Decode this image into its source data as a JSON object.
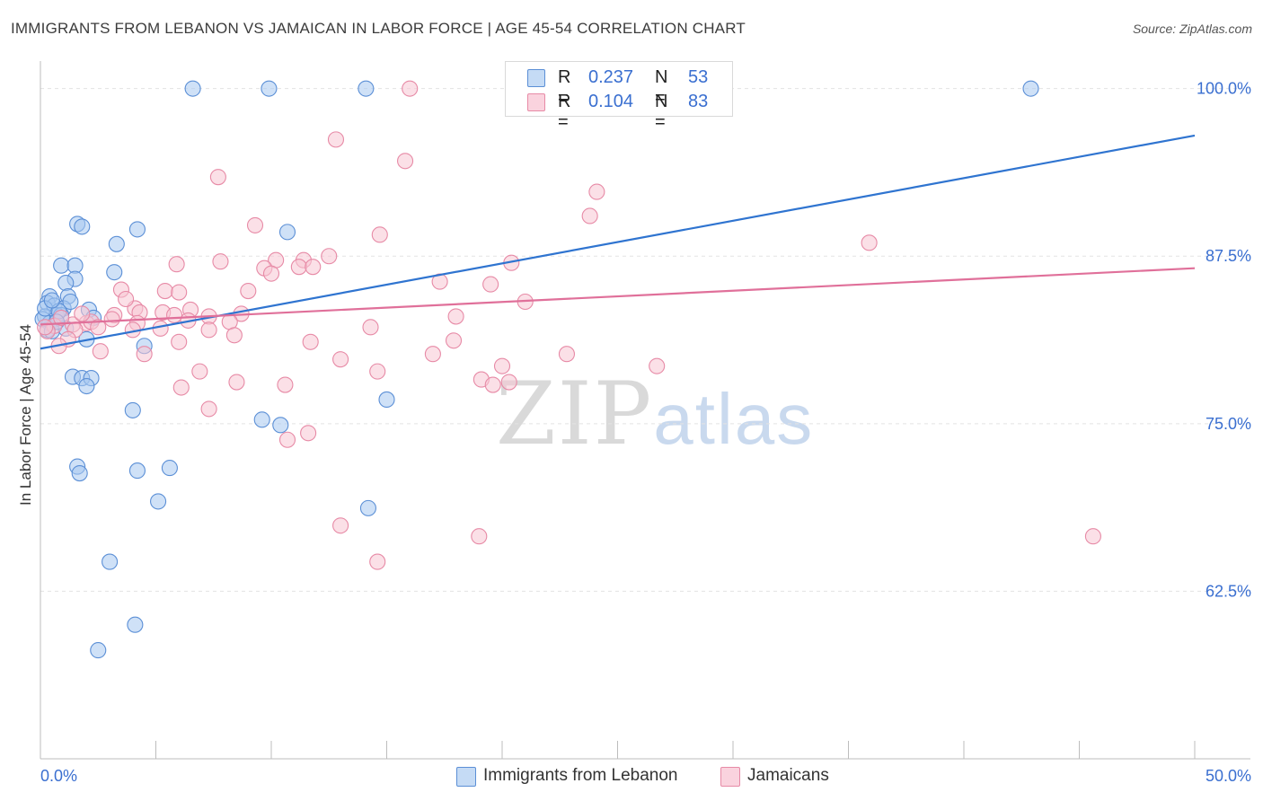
{
  "title": "IMMIGRANTS FROM LEBANON VS JAMAICAN IN LABOR FORCE | AGE 45-54 CORRELATION CHART",
  "source": "Source: ZipAtlas.com",
  "watermark": {
    "zip": "ZIP",
    "atlas": "atlas"
  },
  "legend": {
    "rows": [
      {
        "r_label": "R =",
        "r_value": "0.237",
        "n_label": "N =",
        "n_value": "53",
        "color": "#a8c8f0",
        "stroke": "#5b8fd6"
      },
      {
        "r_label": "R =",
        "r_value": "0.104",
        "n_label": "N =",
        "n_value": "83",
        "color": "#f8c6d4",
        "stroke": "#e78aa6"
      }
    ]
  },
  "bottom_legend": [
    {
      "label": "Immigrants from Lebanon",
      "color": "#a8c8f0",
      "stroke": "#5b8fd6"
    },
    {
      "label": "Jamaicans",
      "color": "#f8c6d4",
      "stroke": "#e78aa6"
    }
  ],
  "chart_data": {
    "type": "scatter",
    "title": "IMMIGRANTS FROM LEBANON VS JAMAICAN IN LABOR FORCE | AGE 45-54 CORRELATION CHART",
    "xlabel": "",
    "ylabel": "In Labor Force | Age 45-54",
    "xlim": [
      0,
      50
    ],
    "ylim": [
      50,
      101.25
    ],
    "x_tick_labels": [
      "0.0%",
      "50.0%"
    ],
    "y_ticks": [
      62.5,
      75.0,
      87.5,
      100.0
    ],
    "y_tick_labels": [
      "62.5%",
      "75.0%",
      "87.5%",
      "100.0%"
    ],
    "grid": true,
    "legend_position": "top-center",
    "series": [
      {
        "name": "Immigrants from Lebanon",
        "color": "#5b8fd6",
        "fill": "#a8c8f0",
        "trend": {
          "x": [
            0,
            50
          ],
          "y": [
            80.6,
            96.5
          ]
        },
        "points": [
          [
            6.6,
            100
          ],
          [
            9.9,
            100
          ],
          [
            14.1,
            100
          ],
          [
            42.9,
            100
          ],
          [
            1.6,
            89.9
          ],
          [
            1.8,
            89.7
          ],
          [
            4.2,
            89.5
          ],
          [
            10.7,
            89.3
          ],
          [
            3.3,
            88.4
          ],
          [
            0.9,
            86.8
          ],
          [
            1.5,
            86.8
          ],
          [
            3.2,
            86.3
          ],
          [
            1.5,
            85.8
          ],
          [
            1.1,
            85.5
          ],
          [
            0.4,
            84.5
          ],
          [
            1.2,
            84.5
          ],
          [
            0.3,
            84.0
          ],
          [
            0.6,
            83.8
          ],
          [
            1.0,
            83.6
          ],
          [
            2.1,
            83.5
          ],
          [
            0.2,
            83.0
          ],
          [
            0.7,
            83.1
          ],
          [
            0.9,
            83.1
          ],
          [
            0.4,
            82.5
          ],
          [
            0.3,
            82.0
          ],
          [
            0.5,
            81.9
          ],
          [
            1.1,
            82.1
          ],
          [
            2.0,
            81.3
          ],
          [
            4.5,
            80.8
          ],
          [
            1.4,
            78.5
          ],
          [
            1.8,
            78.4
          ],
          [
            2.2,
            78.4
          ],
          [
            2.0,
            77.8
          ],
          [
            15.0,
            76.8
          ],
          [
            4.0,
            76.0
          ],
          [
            9.6,
            75.3
          ],
          [
            10.4,
            74.9
          ],
          [
            1.6,
            71.8
          ],
          [
            1.7,
            71.3
          ],
          [
            4.2,
            71.5
          ],
          [
            5.6,
            71.7
          ],
          [
            5.1,
            69.2
          ],
          [
            14.2,
            68.7
          ],
          [
            3.0,
            64.7
          ],
          [
            4.1,
            60.0
          ],
          [
            2.5,
            58.1
          ],
          [
            0.1,
            82.8
          ],
          [
            0.2,
            83.6
          ],
          [
            0.8,
            83.4
          ],
          [
            0.5,
            84.2
          ],
          [
            1.3,
            84.1
          ],
          [
            0.7,
            82.6
          ],
          [
            2.3,
            82.9
          ]
        ]
      },
      {
        "name": "Jamaicans",
        "color": "#e78aa6",
        "fill": "#f8c6d4",
        "trend": {
          "x": [
            0,
            50
          ],
          "y": [
            82.4,
            86.6
          ]
        },
        "points": [
          [
            16.0,
            100
          ],
          [
            28.7,
            100
          ],
          [
            12.8,
            96.2
          ],
          [
            15.8,
            94.6
          ],
          [
            7.7,
            93.4
          ],
          [
            24.1,
            92.3
          ],
          [
            23.8,
            90.5
          ],
          [
            9.3,
            89.8
          ],
          [
            14.7,
            89.1
          ],
          [
            35.9,
            88.5
          ],
          [
            12.5,
            87.5
          ],
          [
            7.8,
            87.1
          ],
          [
            10.2,
            87.2
          ],
          [
            11.4,
            87.2
          ],
          [
            20.4,
            87.0
          ],
          [
            5.9,
            86.9
          ],
          [
            9.7,
            86.6
          ],
          [
            11.2,
            86.7
          ],
          [
            10.0,
            86.2
          ],
          [
            11.8,
            86.7
          ],
          [
            17.3,
            85.6
          ],
          [
            19.5,
            85.4
          ],
          [
            3.5,
            85.0
          ],
          [
            5.4,
            84.9
          ],
          [
            6.0,
            84.8
          ],
          [
            9.0,
            84.9
          ],
          [
            21.0,
            84.1
          ],
          [
            4.1,
            83.6
          ],
          [
            4.3,
            83.3
          ],
          [
            6.5,
            83.5
          ],
          [
            5.3,
            83.3
          ],
          [
            7.3,
            83.0
          ],
          [
            8.7,
            83.2
          ],
          [
            18.0,
            83.0
          ],
          [
            3.2,
            83.1
          ],
          [
            3.1,
            82.8
          ],
          [
            2.0,
            82.5
          ],
          [
            4.2,
            82.5
          ],
          [
            6.4,
            82.7
          ],
          [
            8.2,
            82.6
          ],
          [
            2.2,
            82.6
          ],
          [
            1.4,
            82.4
          ],
          [
            0.6,
            82.3
          ],
          [
            1.5,
            82.0
          ],
          [
            0.3,
            81.9
          ],
          [
            4.0,
            82.0
          ],
          [
            5.2,
            82.1
          ],
          [
            7.3,
            82.0
          ],
          [
            14.3,
            82.2
          ],
          [
            8.4,
            81.6
          ],
          [
            1.2,
            81.3
          ],
          [
            0.8,
            80.8
          ],
          [
            11.7,
            81.1
          ],
          [
            17.9,
            81.2
          ],
          [
            6.0,
            81.1
          ],
          [
            2.6,
            80.4
          ],
          [
            4.5,
            80.2
          ],
          [
            17.0,
            80.2
          ],
          [
            22.8,
            80.2
          ],
          [
            13.0,
            79.8
          ],
          [
            20.0,
            79.3
          ],
          [
            26.7,
            79.3
          ],
          [
            14.6,
            78.9
          ],
          [
            6.9,
            78.9
          ],
          [
            8.5,
            78.1
          ],
          [
            10.6,
            77.9
          ],
          [
            19.1,
            78.3
          ],
          [
            19.6,
            77.9
          ],
          [
            20.3,
            78.1
          ],
          [
            6.1,
            77.7
          ],
          [
            7.3,
            76.1
          ],
          [
            11.6,
            74.3
          ],
          [
            10.7,
            73.8
          ],
          [
            13.0,
            67.4
          ],
          [
            19.0,
            66.6
          ],
          [
            45.6,
            66.6
          ],
          [
            14.6,
            64.7
          ],
          [
            0.2,
            82.2
          ],
          [
            0.9,
            82.9
          ],
          [
            1.8,
            83.2
          ],
          [
            2.5,
            82.2
          ],
          [
            3.7,
            84.3
          ],
          [
            5.8,
            83.1
          ]
        ]
      }
    ]
  }
}
